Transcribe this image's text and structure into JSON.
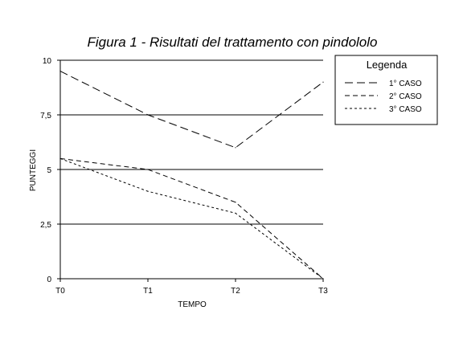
{
  "chart_data": {
    "type": "line",
    "title": "Figura 1 - Risultati del trattamento con pindololo",
    "xlabel": "TEMPO",
    "ylabel": "PUNTEGGI",
    "categories": [
      "T0",
      "T1",
      "T2",
      "T3"
    ],
    "ylim": [
      0,
      10
    ],
    "yticks": [
      "0",
      "2,5",
      "5",
      "7,5",
      "10"
    ],
    "ytick_values": [
      0,
      2.5,
      5,
      7.5,
      10
    ],
    "grid": "horizontal",
    "legend": {
      "title": "Legenda",
      "placement": "top-right"
    },
    "series": [
      {
        "name": "1° CASO",
        "values": [
          9.5,
          7.5,
          6,
          9
        ],
        "dash": "long"
      },
      {
        "name": "2° CASO",
        "values": [
          5.5,
          5,
          3.5,
          0
        ],
        "dash": "medium"
      },
      {
        "name": "3° CASO",
        "values": [
          5.5,
          4,
          3,
          0
        ],
        "dash": "short"
      }
    ],
    "colors": {
      "line": "#000000",
      "background": "#ffffff"
    }
  }
}
